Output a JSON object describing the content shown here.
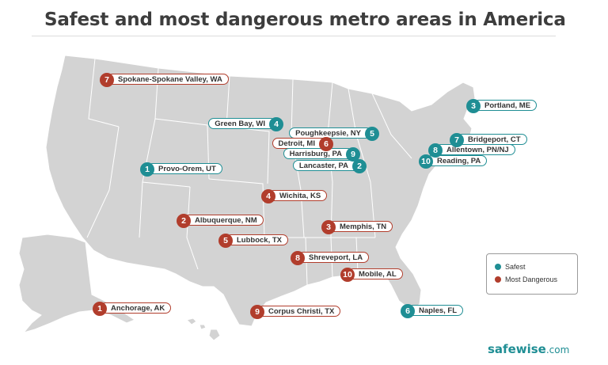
{
  "title": "Safest and most dangerous metro areas in America",
  "colors": {
    "safest": "#1f8e94",
    "most_dangerous": "#b13d2c",
    "land": "#d3d3d3",
    "borders": "#ffffff"
  },
  "legend": {
    "safest_label": "Safest",
    "dangerous_label": "Most Dangerous"
  },
  "logo": {
    "name": "safewise",
    "suffix": ".com"
  },
  "markers": [
    {
      "rank": "7",
      "label": "Spokane-Spokane Valley, WA",
      "type": "danger"
    },
    {
      "rank": "3",
      "label": "Portland, ME",
      "type": "safe"
    },
    {
      "rank": "4",
      "label": "Green Bay, WI",
      "type": "safe"
    },
    {
      "rank": "5",
      "label": "Poughkeepsie, NY",
      "type": "safe"
    },
    {
      "rank": "6",
      "label": "Detroit, MI",
      "type": "danger"
    },
    {
      "rank": "7",
      "label": "Bridgeport, CT",
      "type": "safe"
    },
    {
      "rank": "9",
      "label": "Harrisburg, PA",
      "type": "safe"
    },
    {
      "rank": "8",
      "label": "Allentown, PN/NJ",
      "type": "safe"
    },
    {
      "rank": "10",
      "label": "Reading, PA",
      "type": "safe"
    },
    {
      "rank": "2",
      "label": "Lancaster, PA",
      "type": "safe"
    },
    {
      "rank": "1",
      "label": "Provo-Orem, UT",
      "type": "safe"
    },
    {
      "rank": "4",
      "label": "Wichita, KS",
      "type": "danger"
    },
    {
      "rank": "2",
      "label": "Albuquerque, NM",
      "type": "danger"
    },
    {
      "rank": "3",
      "label": "Memphis, TN",
      "type": "danger"
    },
    {
      "rank": "5",
      "label": "Lubbock, TX",
      "type": "danger"
    },
    {
      "rank": "8",
      "label": "Shreveport, LA",
      "type": "danger"
    },
    {
      "rank": "10",
      "label": "Mobile, AL",
      "type": "danger"
    },
    {
      "rank": "1",
      "label": "Anchorage, AK",
      "type": "danger"
    },
    {
      "rank": "9",
      "label": "Corpus Christi, TX",
      "type": "danger"
    },
    {
      "rank": "6",
      "label": "Naples, FL",
      "type": "safe"
    }
  ]
}
